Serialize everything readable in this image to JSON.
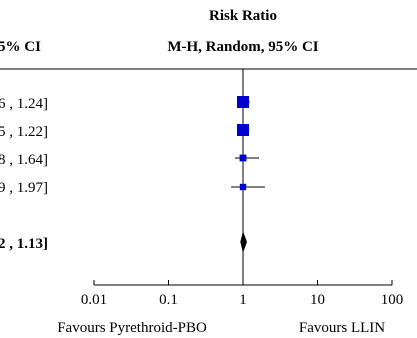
{
  "header": {
    "col_ci": "5% CI",
    "rr_title": "Risk Ratio",
    "rr_method": "M-H, Random, 95% CI"
  },
  "rows": [
    {
      "ci_text": "6 , 1.24]",
      "bold": false
    },
    {
      "ci_text": "5 , 1.22]",
      "bold": false
    },
    {
      "ci_text": "8 , 1.64]",
      "bold": false
    },
    {
      "ci_text": "9 , 1.97]",
      "bold": false
    },
    {
      "ci_text": "2 , 1.13]",
      "bold": true
    }
  ],
  "favours": {
    "left": "Favours Pyrethroid-PBO",
    "right": "Favours LLIN"
  },
  "chart_data": {
    "type": "forest",
    "x_scale": "log",
    "xlim": [
      0.01,
      100
    ],
    "reference_line": 1,
    "x_ticks": [
      {
        "value": 0.01,
        "label": "0.01"
      },
      {
        "value": 0.1,
        "label": "0.1"
      },
      {
        "value": 1,
        "label": "1"
      },
      {
        "value": 10,
        "label": "10"
      },
      {
        "value": 100,
        "label": "100"
      }
    ],
    "studies": [
      {
        "estimate": 1.0,
        "lower": 0.96,
        "upper": 1.24,
        "weight": 1.0
      },
      {
        "estimate": 1.0,
        "lower": 0.95,
        "upper": 1.22,
        "weight": 1.0
      },
      {
        "estimate": 1.0,
        "lower": 0.78,
        "upper": 1.64,
        "weight": 0.35
      },
      {
        "estimate": 1.0,
        "lower": 0.69,
        "upper": 1.97,
        "weight": 0.3
      }
    ],
    "pooled": {
      "estimate": 1.0,
      "lower": 0.92,
      "upper": 1.13
    },
    "colors": {
      "marker": "#0000cc",
      "diamond": "#000000"
    }
  }
}
